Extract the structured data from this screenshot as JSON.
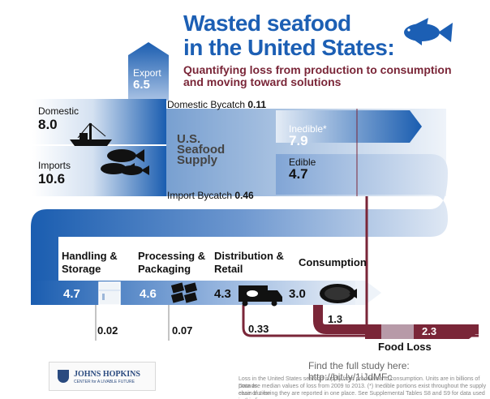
{
  "header": {
    "title_line1": "Wasted seafood",
    "title_line2": "in the United States:",
    "subtitle_line1": "Quantifying loss from production to consumption",
    "subtitle_line2": "and moving toward solutions"
  },
  "flows": {
    "export": {
      "label": "Export",
      "value": "6.5"
    },
    "domestic": {
      "label": "Domestic",
      "value": "8.0"
    },
    "imports": {
      "label": "Imports",
      "value": "10.6"
    },
    "domestic_bycatch": {
      "label": "Domestic Bycatch",
      "value": "0.11"
    },
    "import_bycatch": {
      "label": "Import Bycatch",
      "value": "0.46"
    },
    "supply": {
      "line1": "U.S.",
      "line2": "Seafood",
      "line3": "Supply"
    },
    "inedible": {
      "label": "Inedible*",
      "value": "7.9"
    },
    "edible": {
      "label": "Edible",
      "value": "4.7"
    }
  },
  "stages": [
    {
      "title_line1": "Handling &",
      "title_line2": "Storage",
      "value": "4.7",
      "loss": "0.02"
    },
    {
      "title_line1": "Processing &",
      "title_line2": "Packaging",
      "value": "4.6",
      "loss": "0.07"
    },
    {
      "title_line1": "Distribution &",
      "title_line2": "Retail",
      "value": "4.3",
      "loss": "0.33"
    },
    {
      "title_line1": "Consumption",
      "title_line2": "",
      "value": "3.0",
      "loss": "1.3"
    }
  ],
  "food_loss": {
    "label": "Food Loss",
    "value": "2.3"
  },
  "footer": {
    "study_link": "Find the full study here: http://bit.ly/1iJdMFc",
    "logo_line1": "JOHNS HOPKINS",
    "logo_line2": "CENTER for A LIVABLE FUTURE",
    "note_line1": "Loss in the United States seafood supply from production to consumption. Units are in billions of pounds.",
    "note_line2": "Data are median values of loss from 2009 to 2013. (*) Inedible portions exist throughout the supply chain but for",
    "note_line3": "ease of viewing they are reported in one place. See Supplemental Tables S8 and S9 for data used in this figure."
  },
  "colors": {
    "flow_blue": "#1a5db0",
    "title_blue": "#1c5fb4",
    "loss_maroon": "#7a2638",
    "light_blue": "#c9d9ee"
  }
}
